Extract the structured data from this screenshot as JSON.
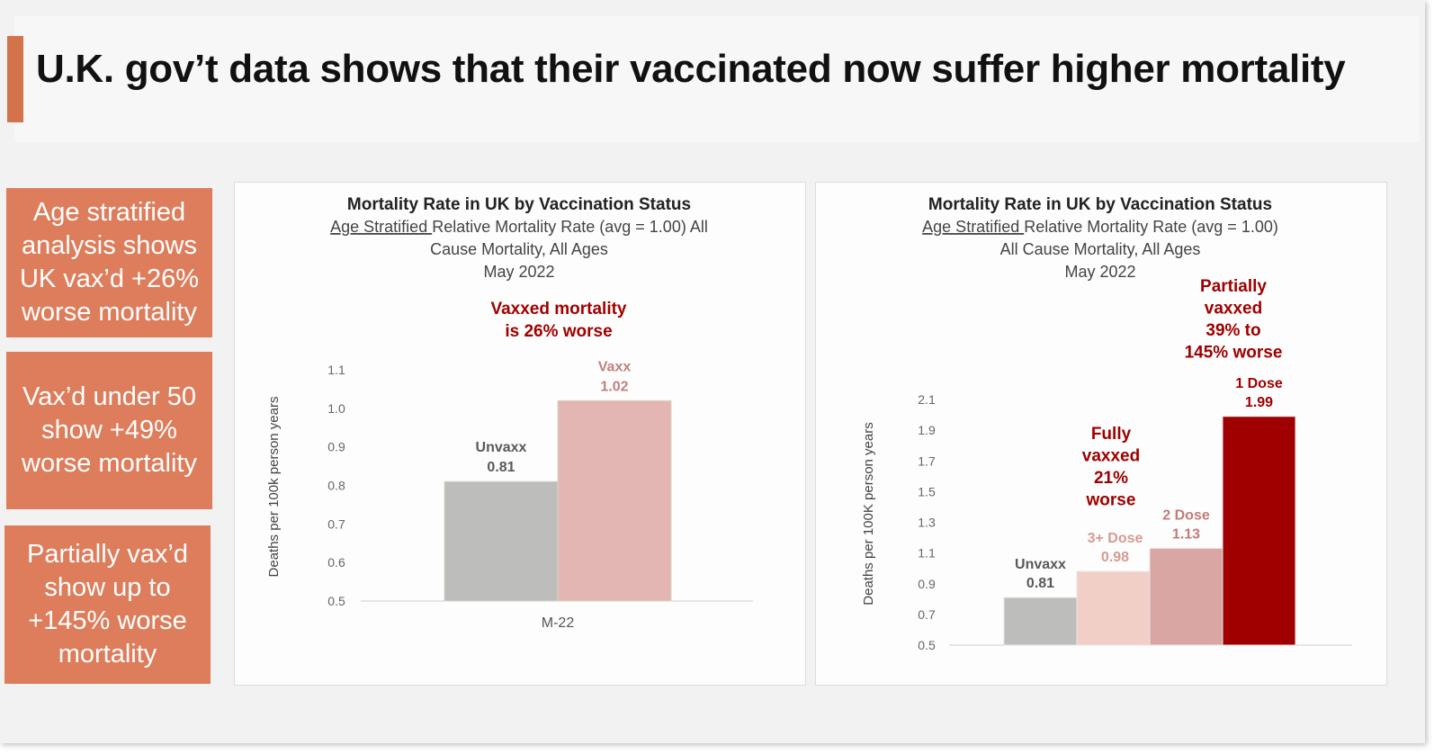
{
  "title": "U.K. gov’t data shows that their vaccinated now suffer higher mortality",
  "colors": {
    "accent": "#d4724c",
    "side_box": "#dd7d5c",
    "dark_red": "#a00000",
    "bar_grey": "#bdbdbb",
    "bar_pink": "#e4b6b3"
  },
  "side_boxes": [
    {
      "lines": [
        "Age stratified",
        "analysis shows",
        "UK vax’d +26%",
        "worse mortality"
      ]
    },
    {
      "lines": [
        "Vax’d under 50",
        "show +49%",
        "worse mortality"
      ]
    },
    {
      "lines": [
        "Partially vax’d",
        "show up to",
        "+145% worse",
        "mortality"
      ]
    }
  ],
  "chart_data": [
    {
      "type": "bar",
      "title": "Mortality Rate in UK by Vaccination Status",
      "subtitle_underlined": "Age Stratified ",
      "subtitle_lines": [
        "Relative Mortality Rate (avg = 1.00) All",
        "Cause Mortality, All Ages",
        "May 2022"
      ],
      "ylabel": "Deaths per 100k person years",
      "ylim": [
        0.5,
        1.1
      ],
      "yticks": [
        "0.5",
        "0.6",
        "0.7",
        "0.8",
        "0.9",
        "1.0",
        "1.1"
      ],
      "category_label": "M-22",
      "annotation_lines": [
        "Vaxxed  mortality",
        "is 26% worse"
      ],
      "bars": [
        {
          "name": "Unvaxx",
          "value_label": "0.81",
          "value": 0.81,
          "color": "#bdbdbb",
          "label_color": "#595959"
        },
        {
          "name": "Vaxx",
          "value_label": "1.02",
          "value": 1.02,
          "color": "#e4b6b3",
          "label_color": "#c08080"
        }
      ]
    },
    {
      "type": "bar",
      "title": "Mortality Rate in UK by Vaccination Status",
      "subtitle_underlined": "Age Stratified ",
      "subtitle_lines": [
        "Relative Mortality Rate (avg = 1.00)",
        "All Cause Mortality, All Ages",
        "May 2022"
      ],
      "ylabel": "Deaths per 100K person years",
      "ylim": [
        0.5,
        2.1
      ],
      "yticks": [
        "0.5",
        "0.7",
        "0.9",
        "1.1",
        "1.3",
        "1.5",
        "1.7",
        "1.9",
        "2.1"
      ],
      "annotations": [
        {
          "lines": [
            "Partially",
            "vaxxed",
            "39% to",
            "145% worse"
          ]
        },
        {
          "lines": [
            "Fully",
            "vaxxed",
            "21%",
            "worse"
          ]
        }
      ],
      "bars": [
        {
          "name": "Unvaxx",
          "value_label": "0.81",
          "value": 0.81,
          "color": "#bdbdbb",
          "label_color": "#595959",
          "bold": false
        },
        {
          "name": "3+ Dose",
          "value_label": "0.98",
          "value": 0.98,
          "color": "#f2cfc6",
          "label_color": "#d89a92",
          "bold": false
        },
        {
          "name": "2 Dose",
          "value_label": "1.13",
          "value": 1.13,
          "color": "#d9a6a3",
          "label_color": "#c27c7a",
          "bold": false
        },
        {
          "name": "1 Dose",
          "value_label": "1.99",
          "value": 1.99,
          "color": "#a00000",
          "label_color": "#a00000",
          "bold": true
        }
      ]
    }
  ]
}
